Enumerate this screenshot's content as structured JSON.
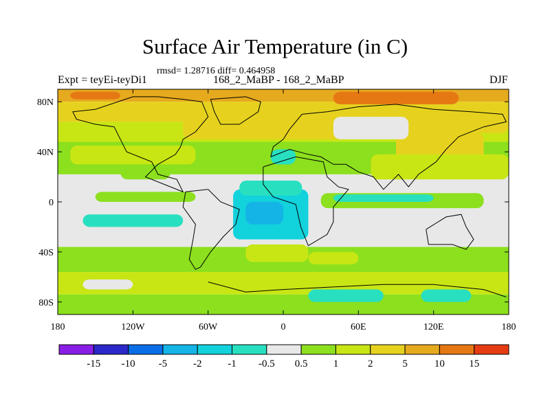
{
  "chart_data": {
    "type": "heatmap",
    "title": "Surface Air Temperature (in C)",
    "stats": "rmsd= 1.28716 diff= 0.464958",
    "left_label": "Expt = teyEi-teyDi1",
    "center_label": "168_2_MaBP - 168_2_MaBP",
    "right_label": "DJF",
    "x_ticks": [
      {
        "value": -180,
        "label": "180"
      },
      {
        "value": -120,
        "label": "120W"
      },
      {
        "value": -60,
        "label": "60W"
      },
      {
        "value": 0,
        "label": "0"
      },
      {
        "value": 60,
        "label": "60E"
      },
      {
        "value": 120,
        "label": "120E"
      },
      {
        "value": 180,
        "label": "180"
      }
    ],
    "y_ticks": [
      {
        "value": 80,
        "label": "80N"
      },
      {
        "value": 40,
        "label": "40N"
      },
      {
        "value": 0,
        "label": "0"
      },
      {
        "value": -40,
        "label": "40S"
      },
      {
        "value": -80,
        "label": "80S"
      }
    ],
    "xlim": [
      -180,
      180
    ],
    "ylim": [
      -90,
      90
    ],
    "colorbar": {
      "colors": [
        "#8a1ee6",
        "#2a28c8",
        "#0a6ee6",
        "#14b4e6",
        "#12d2dc",
        "#28e0c0",
        "#e8e8e8",
        "#8ce01e",
        "#c8e614",
        "#e6d21e",
        "#e6aa1e",
        "#e67814",
        "#e63c14"
      ],
      "labels": [
        "-15",
        "-10",
        "-5",
        "-2",
        "-1",
        "-0.5",
        "0.5",
        "1",
        "2",
        "5",
        "10",
        "15"
      ]
    },
    "field": [
      {
        "x": -180,
        "y": 80,
        "w": 360,
        "h": 10,
        "level": 10
      },
      {
        "x": -180,
        "y": 64,
        "w": 360,
        "h": 16,
        "level": 9
      },
      {
        "x": -180,
        "y": 48,
        "w": 360,
        "h": 16,
        "level": 8
      },
      {
        "x": -180,
        "y": 22,
        "w": 360,
        "h": 26,
        "level": 7
      },
      {
        "x": -180,
        "y": -36,
        "w": 360,
        "h": 58,
        "level": 6
      },
      {
        "x": -180,
        "y": -56,
        "w": 360,
        "h": 20,
        "level": 7
      },
      {
        "x": -180,
        "y": -74,
        "w": 360,
        "h": 18,
        "level": 8
      },
      {
        "x": -180,
        "y": -90,
        "w": 360,
        "h": 16,
        "level": 7
      },
      {
        "x": -80,
        "y": 50,
        "w": 140,
        "h": 30,
        "level": 9
      },
      {
        "x": 40,
        "y": 55,
        "w": 140,
        "h": 20,
        "level": 9
      },
      {
        "x": -170,
        "y": 30,
        "w": 100,
        "h": 15,
        "level": 8
      },
      {
        "x": 90,
        "y": 30,
        "w": 70,
        "h": 25,
        "level": 9
      },
      {
        "x": 40,
        "y": 50,
        "w": 60,
        "h": 18,
        "level": 6
      },
      {
        "x": 70,
        "y": 18,
        "w": 110,
        "h": 20,
        "level": 8
      },
      {
        "x": -130,
        "y": 18,
        "w": 40,
        "h": 12,
        "level": 7
      },
      {
        "x": -150,
        "y": 0,
        "w": 80,
        "h": 8,
        "level": 7
      },
      {
        "x": 30,
        "y": -5,
        "w": 130,
        "h": 12,
        "level": 7
      },
      {
        "x": -160,
        "y": -20,
        "w": 80,
        "h": 10,
        "level": 5
      },
      {
        "x": 40,
        "y": 0,
        "w": 80,
        "h": 6,
        "level": 5
      },
      {
        "x": -40,
        "y": -30,
        "w": 60,
        "h": 40,
        "level": 4
      },
      {
        "x": -30,
        "y": -18,
        "w": 30,
        "h": 18,
        "level": 3
      },
      {
        "x": -35,
        "y": 5,
        "w": 50,
        "h": 12,
        "level": 5
      },
      {
        "x": -10,
        "y": 30,
        "w": 20,
        "h": 12,
        "level": 5
      },
      {
        "x": -30,
        "y": -48,
        "w": 50,
        "h": 14,
        "level": 8
      },
      {
        "x": 20,
        "y": -50,
        "w": 40,
        "h": 10,
        "level": 8
      },
      {
        "x": 110,
        "y": -30,
        "w": 60,
        "h": 15,
        "level": 6
      },
      {
        "x": -160,
        "y": -70,
        "w": 40,
        "h": 8,
        "level": 6
      },
      {
        "x": 20,
        "y": -80,
        "w": 60,
        "h": 10,
        "level": 5
      },
      {
        "x": 110,
        "y": -80,
        "w": 40,
        "h": 10,
        "level": 5
      },
      {
        "x": -170,
        "y": 82,
        "w": 40,
        "h": 6,
        "level": 11
      },
      {
        "x": 40,
        "y": 78,
        "w": 100,
        "h": 10,
        "level": 11
      }
    ],
    "coastlines": [
      {
        "name": "north-america",
        "points": [
          [
            -120,
            84
          ],
          [
            -100,
            84
          ],
          [
            -80,
            82
          ],
          [
            -65,
            80
          ],
          [
            -60,
            68
          ],
          [
            -70,
            56
          ],
          [
            -80,
            50
          ],
          [
            -82,
            44
          ],
          [
            -86,
            38
          ],
          [
            -100,
            30
          ],
          [
            -110,
            20
          ],
          [
            -95,
            14
          ],
          [
            -80,
            8
          ],
          [
            -85,
            18
          ],
          [
            -100,
            22
          ],
          [
            -105,
            32
          ],
          [
            -125,
            40
          ],
          [
            -135,
            60
          ],
          [
            -150,
            62
          ],
          [
            -165,
            66
          ],
          [
            -168,
            72
          ],
          [
            -150,
            74
          ],
          [
            -120,
            84
          ]
        ]
      },
      {
        "name": "greenland",
        "points": [
          [
            -58,
            82
          ],
          [
            -30,
            84
          ],
          [
            -18,
            80
          ],
          [
            -20,
            72
          ],
          [
            -35,
            62
          ],
          [
            -50,
            62
          ],
          [
            -55,
            72
          ],
          [
            -58,
            82
          ]
        ]
      },
      {
        "name": "south-america",
        "points": [
          [
            -78,
            8
          ],
          [
            -60,
            10
          ],
          [
            -50,
            0
          ],
          [
            -35,
            -6
          ],
          [
            -38,
            -18
          ],
          [
            -48,
            -28
          ],
          [
            -58,
            -40
          ],
          [
            -66,
            -52
          ],
          [
            -70,
            -54
          ],
          [
            -75,
            -46
          ],
          [
            -72,
            -30
          ],
          [
            -70,
            -18
          ],
          [
            -80,
            -4
          ],
          [
            -78,
            8
          ]
        ]
      },
      {
        "name": "eurasia",
        "points": [
          [
            -10,
            36
          ],
          [
            -8,
            44
          ],
          [
            0,
            50
          ],
          [
            5,
            58
          ],
          [
            15,
            70
          ],
          [
            35,
            72
          ],
          [
            60,
            76
          ],
          [
            90,
            78
          ],
          [
            120,
            74
          ],
          [
            150,
            72
          ],
          [
            175,
            70
          ],
          [
            178,
            64
          ],
          [
            160,
            60
          ],
          [
            140,
            52
          ],
          [
            130,
            42
          ],
          [
            122,
            32
          ],
          [
            108,
            22
          ],
          [
            100,
            12
          ],
          [
            92,
            22
          ],
          [
            80,
            10
          ],
          [
            72,
            20
          ],
          [
            60,
            24
          ],
          [
            50,
            30
          ],
          [
            40,
            30
          ],
          [
            30,
            36
          ],
          [
            20,
            38
          ],
          [
            5,
            42
          ],
          [
            -10,
            36
          ]
        ]
      },
      {
        "name": "africa",
        "points": [
          [
            -16,
            28
          ],
          [
            10,
            36
          ],
          [
            32,
            32
          ],
          [
            35,
            20
          ],
          [
            44,
            12
          ],
          [
            52,
            10
          ],
          [
            40,
            -4
          ],
          [
            40,
            -16
          ],
          [
            35,
            -26
          ],
          [
            20,
            -35
          ],
          [
            14,
            -20
          ],
          [
            10,
            -2
          ],
          [
            -8,
            4
          ],
          [
            -16,
            14
          ],
          [
            -16,
            28
          ]
        ]
      },
      {
        "name": "australia",
        "points": [
          [
            114,
            -22
          ],
          [
            130,
            -12
          ],
          [
            142,
            -10
          ],
          [
            146,
            -20
          ],
          [
            152,
            -30
          ],
          [
            146,
            -38
          ],
          [
            135,
            -34
          ],
          [
            116,
            -34
          ],
          [
            114,
            -22
          ]
        ]
      },
      {
        "name": "antarctica",
        "points": [
          [
            -60,
            -64
          ],
          [
            -30,
            -72
          ],
          [
            0,
            -70
          ],
          [
            40,
            -68
          ],
          [
            80,
            -66
          ],
          [
            120,
            -66
          ],
          [
            160,
            -70
          ],
          [
            178,
            -76
          ]
        ]
      }
    ]
  }
}
